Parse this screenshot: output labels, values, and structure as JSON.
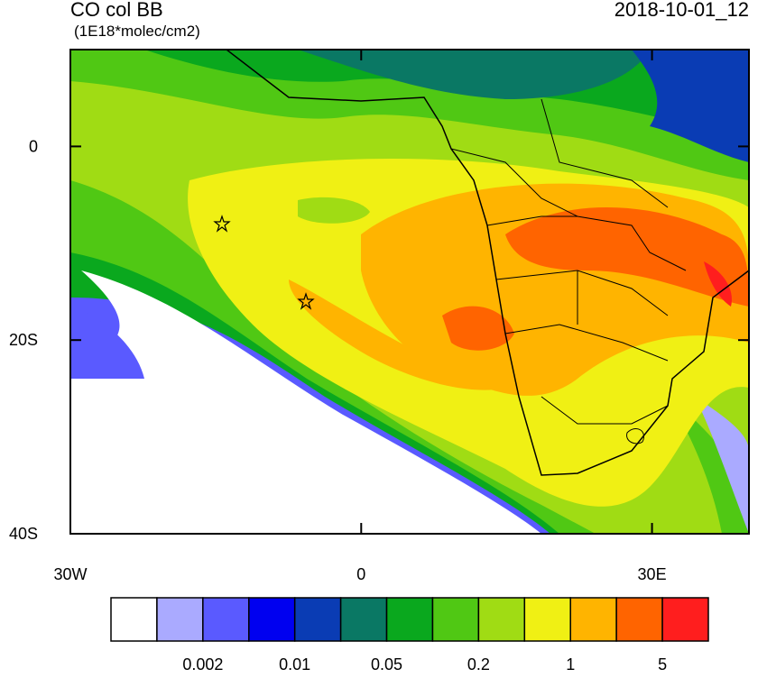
{
  "header": {
    "title": "CO col BB",
    "units": "(1E18*molec/cm2)",
    "date": "2018-10-01_12"
  },
  "map": {
    "xlim": [
      -30,
      40
    ],
    "ylim": [
      -40,
      10
    ],
    "xticks": [
      {
        "value": -30,
        "label": "30W"
      },
      0,
      {
        "value": 30,
        "label": "30E"
      }
    ],
    "yticks": [
      0,
      {
        "value": -20,
        "label": "20S"
      },
      {
        "value": -40,
        "label": "40S"
      }
    ]
  },
  "colorbar": {
    "colors": [
      "#ffffff",
      "#aaaaff",
      "#5a5aff",
      "#0000f0",
      "#0a3cb4",
      "#0a7864",
      "#0aa81e",
      "#50c814",
      "#a0dc14",
      "#f0f014",
      "#ffb400",
      "#ff6400",
      "#ff1e1e"
    ],
    "labels": [
      0.002,
      0.01,
      0.05,
      0.2,
      1,
      5
    ]
  }
}
